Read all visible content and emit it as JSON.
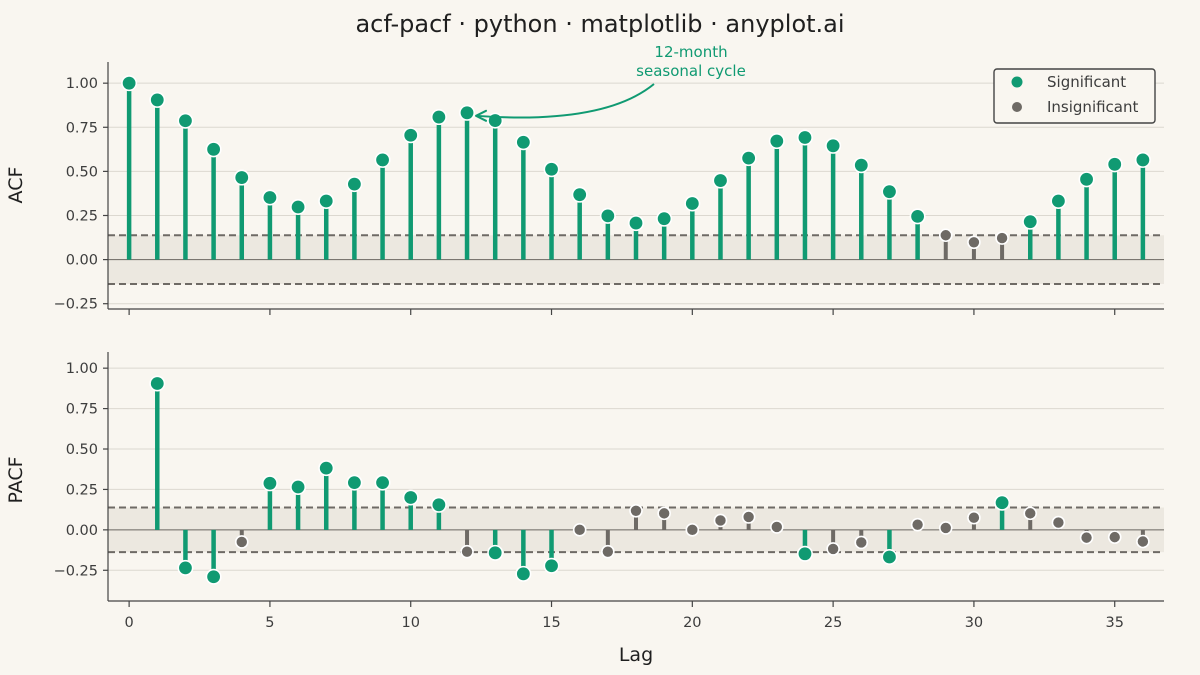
{
  "title": "acf-pacf · python · matplotlib · anyplot.ai",
  "colors": {
    "background": "#f9f6f0",
    "significant": "#109a72",
    "insignificant": "#6e6a65",
    "confidence_band": "#ece8e0",
    "confidence_line": "#6e6a65",
    "grid": "#dcd8d0"
  },
  "legend": {
    "position": "upper-right of top panel",
    "significant_label": "Significant",
    "insignificant_label": "Insignificant"
  },
  "annotation": {
    "line1": "12-month",
    "line2": "seasonal cycle",
    "points_to_lag": 12
  },
  "chart_data": [
    {
      "type": "stem",
      "panel": "ACF",
      "ylabel": "ACF",
      "xlabel": "",
      "xlim": [
        -0.75,
        36.75
      ],
      "ylim": [
        -0.28,
        1.12
      ],
      "yticks": [
        "1.00",
        "0.75",
        "0.50",
        "0.25",
        "0.00",
        "−0.25"
      ],
      "ytick_values": [
        1.0,
        0.75,
        0.5,
        0.25,
        0.0,
        -0.25
      ],
      "xtick_values": [
        0,
        5,
        10,
        15,
        20,
        25,
        30,
        35
      ],
      "show_xtick_labels": false,
      "confidence_interval": 0.138,
      "lags": [
        0,
        1,
        2,
        3,
        4,
        5,
        6,
        7,
        8,
        9,
        10,
        11,
        12,
        13,
        14,
        15,
        16,
        17,
        18,
        19,
        20,
        21,
        22,
        23,
        24,
        25,
        26,
        27,
        28,
        29,
        30,
        31,
        32,
        33,
        34,
        35,
        36
      ],
      "values": [
        1.0,
        0.905,
        0.787,
        0.625,
        0.465,
        0.352,
        0.298,
        0.332,
        0.428,
        0.565,
        0.705,
        0.808,
        0.832,
        0.788,
        0.665,
        0.512,
        0.368,
        0.248,
        0.207,
        0.232,
        0.318,
        0.448,
        0.575,
        0.672,
        0.692,
        0.645,
        0.535,
        0.385,
        0.245,
        0.138,
        0.098,
        0.122,
        0.215,
        0.332,
        0.455,
        0.54,
        0.565
      ],
      "grid": "horizontal"
    },
    {
      "type": "stem",
      "panel": "PACF",
      "ylabel": "PACF",
      "xlabel": "Lag",
      "xlim": [
        -0.75,
        36.75
      ],
      "ylim": [
        -0.44,
        1.1
      ],
      "yticks": [
        "1.00",
        "0.75",
        "0.50",
        "0.25",
        "0.00",
        "−0.25"
      ],
      "ytick_values": [
        1.0,
        0.75,
        0.5,
        0.25,
        0.0,
        -0.25
      ],
      "xticks": [
        "0",
        "5",
        "10",
        "15",
        "20",
        "25",
        "30",
        "35"
      ],
      "xtick_values": [
        0,
        5,
        10,
        15,
        20,
        25,
        30,
        35
      ],
      "confidence_interval": 0.138,
      "lags": [
        1,
        2,
        3,
        4,
        5,
        6,
        7,
        8,
        9,
        10,
        11,
        12,
        13,
        14,
        15,
        16,
        17,
        18,
        19,
        20,
        21,
        22,
        23,
        24,
        25,
        26,
        27,
        28,
        29,
        30,
        31,
        32,
        33,
        34,
        35,
        36
      ],
      "values": [
        0.905,
        -0.235,
        -0.29,
        -0.075,
        0.288,
        0.265,
        0.382,
        0.292,
        0.292,
        0.2,
        0.155,
        -0.135,
        -0.142,
        -0.272,
        -0.222,
        0.0,
        -0.135,
        0.118,
        0.102,
        0.0,
        0.058,
        0.08,
        0.018,
        -0.148,
        -0.118,
        -0.078,
        -0.168,
        0.032,
        0.012,
        0.075,
        0.168,
        0.102,
        0.045,
        -0.048,
        -0.045,
        -0.072
      ],
      "grid": "horizontal"
    }
  ]
}
